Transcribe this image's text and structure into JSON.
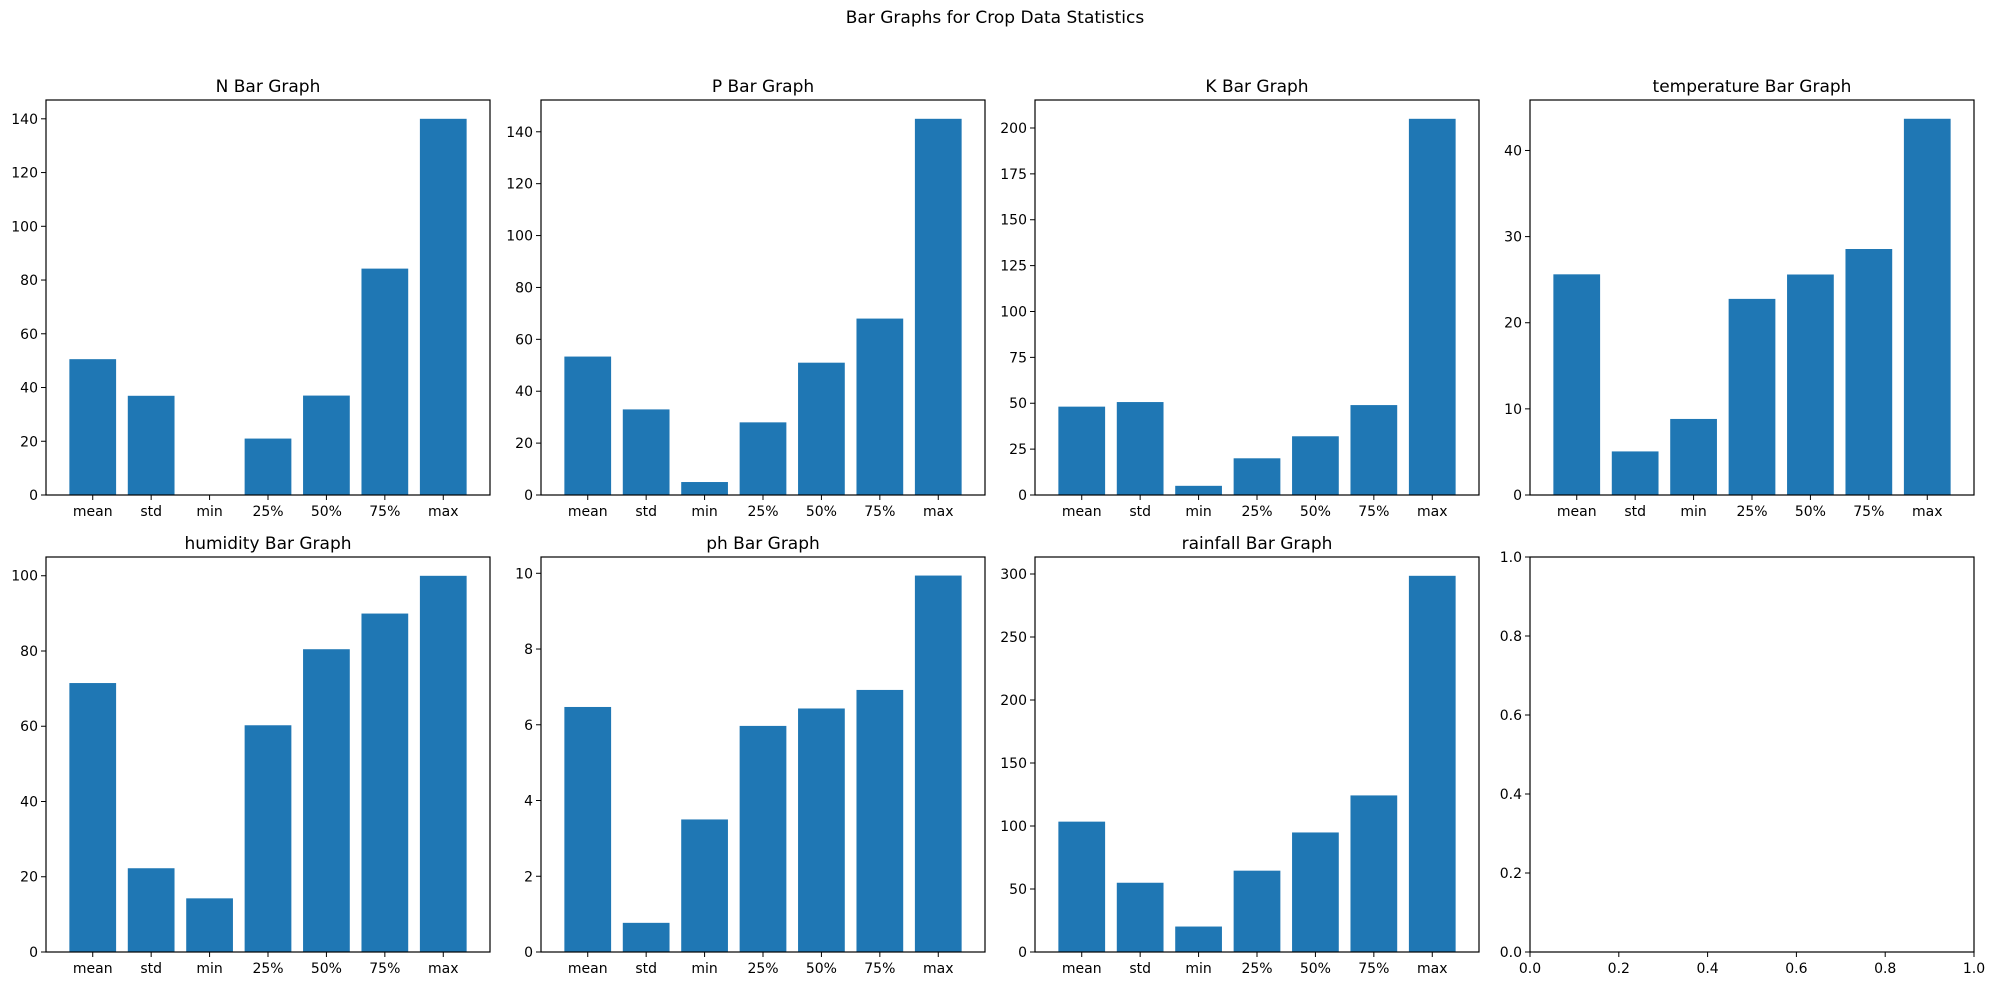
{
  "figure_title": "Bar Graphs for Crop Data Statistics",
  "bar_color": "#1f77b4",
  "chart_data": [
    {
      "type": "bar",
      "title": "N Bar Graph",
      "categories": [
        "mean",
        "std",
        "min",
        "25%",
        "50%",
        "75%",
        "max"
      ],
      "values": [
        50.55,
        36.92,
        0,
        21,
        37,
        84.25,
        140
      ],
      "ylim": [
        0,
        147
      ],
      "yticks": [
        0,
        20,
        40,
        60,
        80,
        100,
        120,
        140
      ],
      "grid": false,
      "xlabel": "",
      "ylabel": ""
    },
    {
      "type": "bar",
      "title": "P Bar Graph",
      "categories": [
        "mean",
        "std",
        "min",
        "25%",
        "50%",
        "75%",
        "max"
      ],
      "values": [
        53.36,
        32.99,
        5,
        28,
        51,
        68,
        145
      ],
      "ylim": [
        0,
        152.25
      ],
      "yticks": [
        0,
        20,
        40,
        60,
        80,
        100,
        120,
        140
      ],
      "grid": false,
      "xlabel": "",
      "ylabel": ""
    },
    {
      "type": "bar",
      "title": "K Bar Graph",
      "categories": [
        "mean",
        "std",
        "min",
        "25%",
        "50%",
        "75%",
        "max"
      ],
      "values": [
        48.15,
        50.65,
        5,
        20,
        32,
        49,
        205
      ],
      "ylim": [
        0,
        215.25
      ],
      "yticks": [
        0,
        25,
        50,
        75,
        100,
        125,
        150,
        175,
        200
      ],
      "grid": false,
      "xlabel": "",
      "ylabel": ""
    },
    {
      "type": "bar",
      "title": "temperature Bar Graph",
      "categories": [
        "mean",
        "std",
        "min",
        "25%",
        "50%",
        "75%",
        "max"
      ],
      "values": [
        25.62,
        5.06,
        8.83,
        22.77,
        25.6,
        28.56,
        43.68
      ],
      "ylim": [
        0,
        45.86
      ],
      "yticks": [
        0,
        10,
        20,
        30,
        40
      ],
      "grid": false,
      "xlabel": "",
      "ylabel": ""
    },
    {
      "type": "bar",
      "title": "humidity Bar Graph",
      "categories": [
        "mean",
        "std",
        "min",
        "25%",
        "50%",
        "75%",
        "max"
      ],
      "values": [
        71.48,
        22.26,
        14.26,
        60.26,
        80.47,
        89.95,
        99.98
      ],
      "ylim": [
        0,
        104.98
      ],
      "yticks": [
        0,
        20,
        40,
        60,
        80,
        100
      ],
      "grid": false,
      "xlabel": "",
      "ylabel": ""
    },
    {
      "type": "bar",
      "title": "ph Bar Graph",
      "categories": [
        "mean",
        "std",
        "min",
        "25%",
        "50%",
        "75%",
        "max"
      ],
      "values": [
        6.47,
        0.77,
        3.5,
        5.97,
        6.43,
        6.92,
        9.94
      ],
      "ylim": [
        0,
        10.43
      ],
      "yticks": [
        0,
        2,
        4,
        6,
        8,
        10
      ],
      "grid": false,
      "xlabel": "",
      "ylabel": ""
    },
    {
      "type": "bar",
      "title": "rainfall Bar Graph",
      "categories": [
        "mean",
        "std",
        "min",
        "25%",
        "50%",
        "75%",
        "max"
      ],
      "values": [
        103.46,
        54.96,
        20.21,
        64.55,
        94.87,
        124.27,
        298.56
      ],
      "ylim": [
        0,
        313.49
      ],
      "yticks": [
        0,
        50,
        100,
        150,
        200,
        250,
        300
      ],
      "grid": false,
      "xlabel": "",
      "ylabel": ""
    },
    {
      "type": "bar",
      "title": "",
      "categories": [],
      "values": [],
      "empty": true,
      "xlim": [
        0,
        1
      ],
      "ylim": [
        0,
        1
      ],
      "xticks": [
        "0.0",
        "0.2",
        "0.4",
        "0.6",
        "0.8",
        "1.0"
      ],
      "yticks": [
        "0.0",
        "0.2",
        "0.4",
        "0.6",
        "0.8",
        "1.0"
      ],
      "grid": false,
      "xlabel": "",
      "ylabel": ""
    }
  ]
}
